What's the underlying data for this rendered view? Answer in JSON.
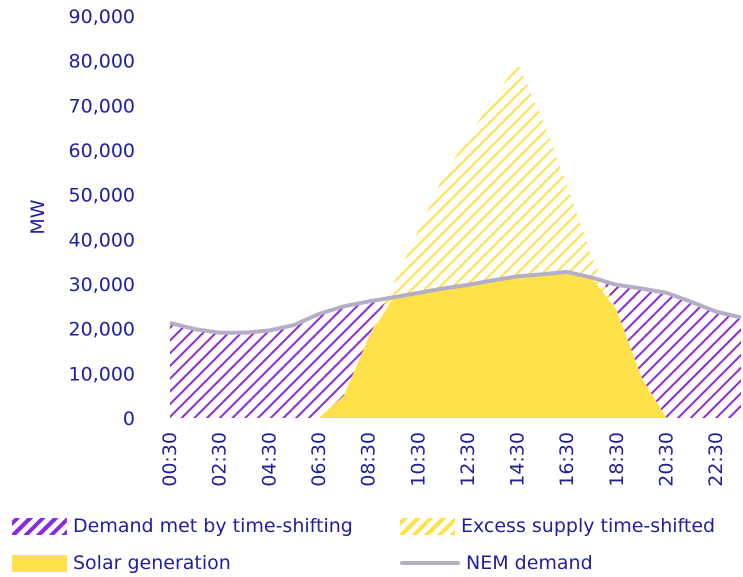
{
  "chart_data": {
    "type": "area",
    "ylabel": "MW",
    "xlabel": "",
    "ylim": [
      0,
      90000
    ],
    "yticks": [
      "0",
      "10,000",
      "20,000",
      "30,000",
      "40,000",
      "50,000",
      "60,000",
      "70,000",
      "80,000",
      "90,000"
    ],
    "xtick_labels": [
      "00:30",
      "02:30",
      "04:30",
      "06:30",
      "08:30",
      "10:30",
      "12:30",
      "14:30",
      "16:30",
      "18:30",
      "20:30",
      "22:30"
    ],
    "x": [
      "00:30",
      "01:30",
      "02:30",
      "03:30",
      "04:30",
      "05:30",
      "06:30",
      "07:30",
      "08:30",
      "09:30",
      "10:30",
      "11:30",
      "12:30",
      "13:30",
      "14:30",
      "15:30",
      "16:30",
      "17:30",
      "18:30",
      "19:30",
      "20:30",
      "21:30",
      "22:30",
      "23:30"
    ],
    "series": [
      {
        "name": "NEM demand",
        "values": [
          21300,
          19900,
          19100,
          19100,
          19600,
          20800,
          23300,
          25000,
          26100,
          27000,
          28000,
          29000,
          29800,
          30800,
          31700,
          32200,
          32700,
          31400,
          29800,
          29000,
          28000,
          26000,
          23800,
          22500
        ]
      },
      {
        "name": "Solar generation",
        "values": [
          0,
          0,
          0,
          0,
          0,
          0,
          0,
          5000,
          18000,
          30000,
          42000,
          54000,
          63000,
          71000,
          79500,
          67000,
          52000,
          36000,
          24000,
          9000,
          0,
          0,
          0,
          0
        ]
      }
    ],
    "legend": [
      {
        "name": "Demand met by time-shifting",
        "style": "hatch-purple"
      },
      {
        "name": "Excess supply time-shifted",
        "style": "hatch-yellow"
      },
      {
        "name": "Solar generation",
        "style": "fill-yellow"
      },
      {
        "name": "NEM demand",
        "style": "line-grey"
      }
    ],
    "colors": {
      "purple": "#8a2be2",
      "yellow": "#ffe14a",
      "grey": "#b5aec7",
      "text": "#1f1f9f"
    }
  }
}
